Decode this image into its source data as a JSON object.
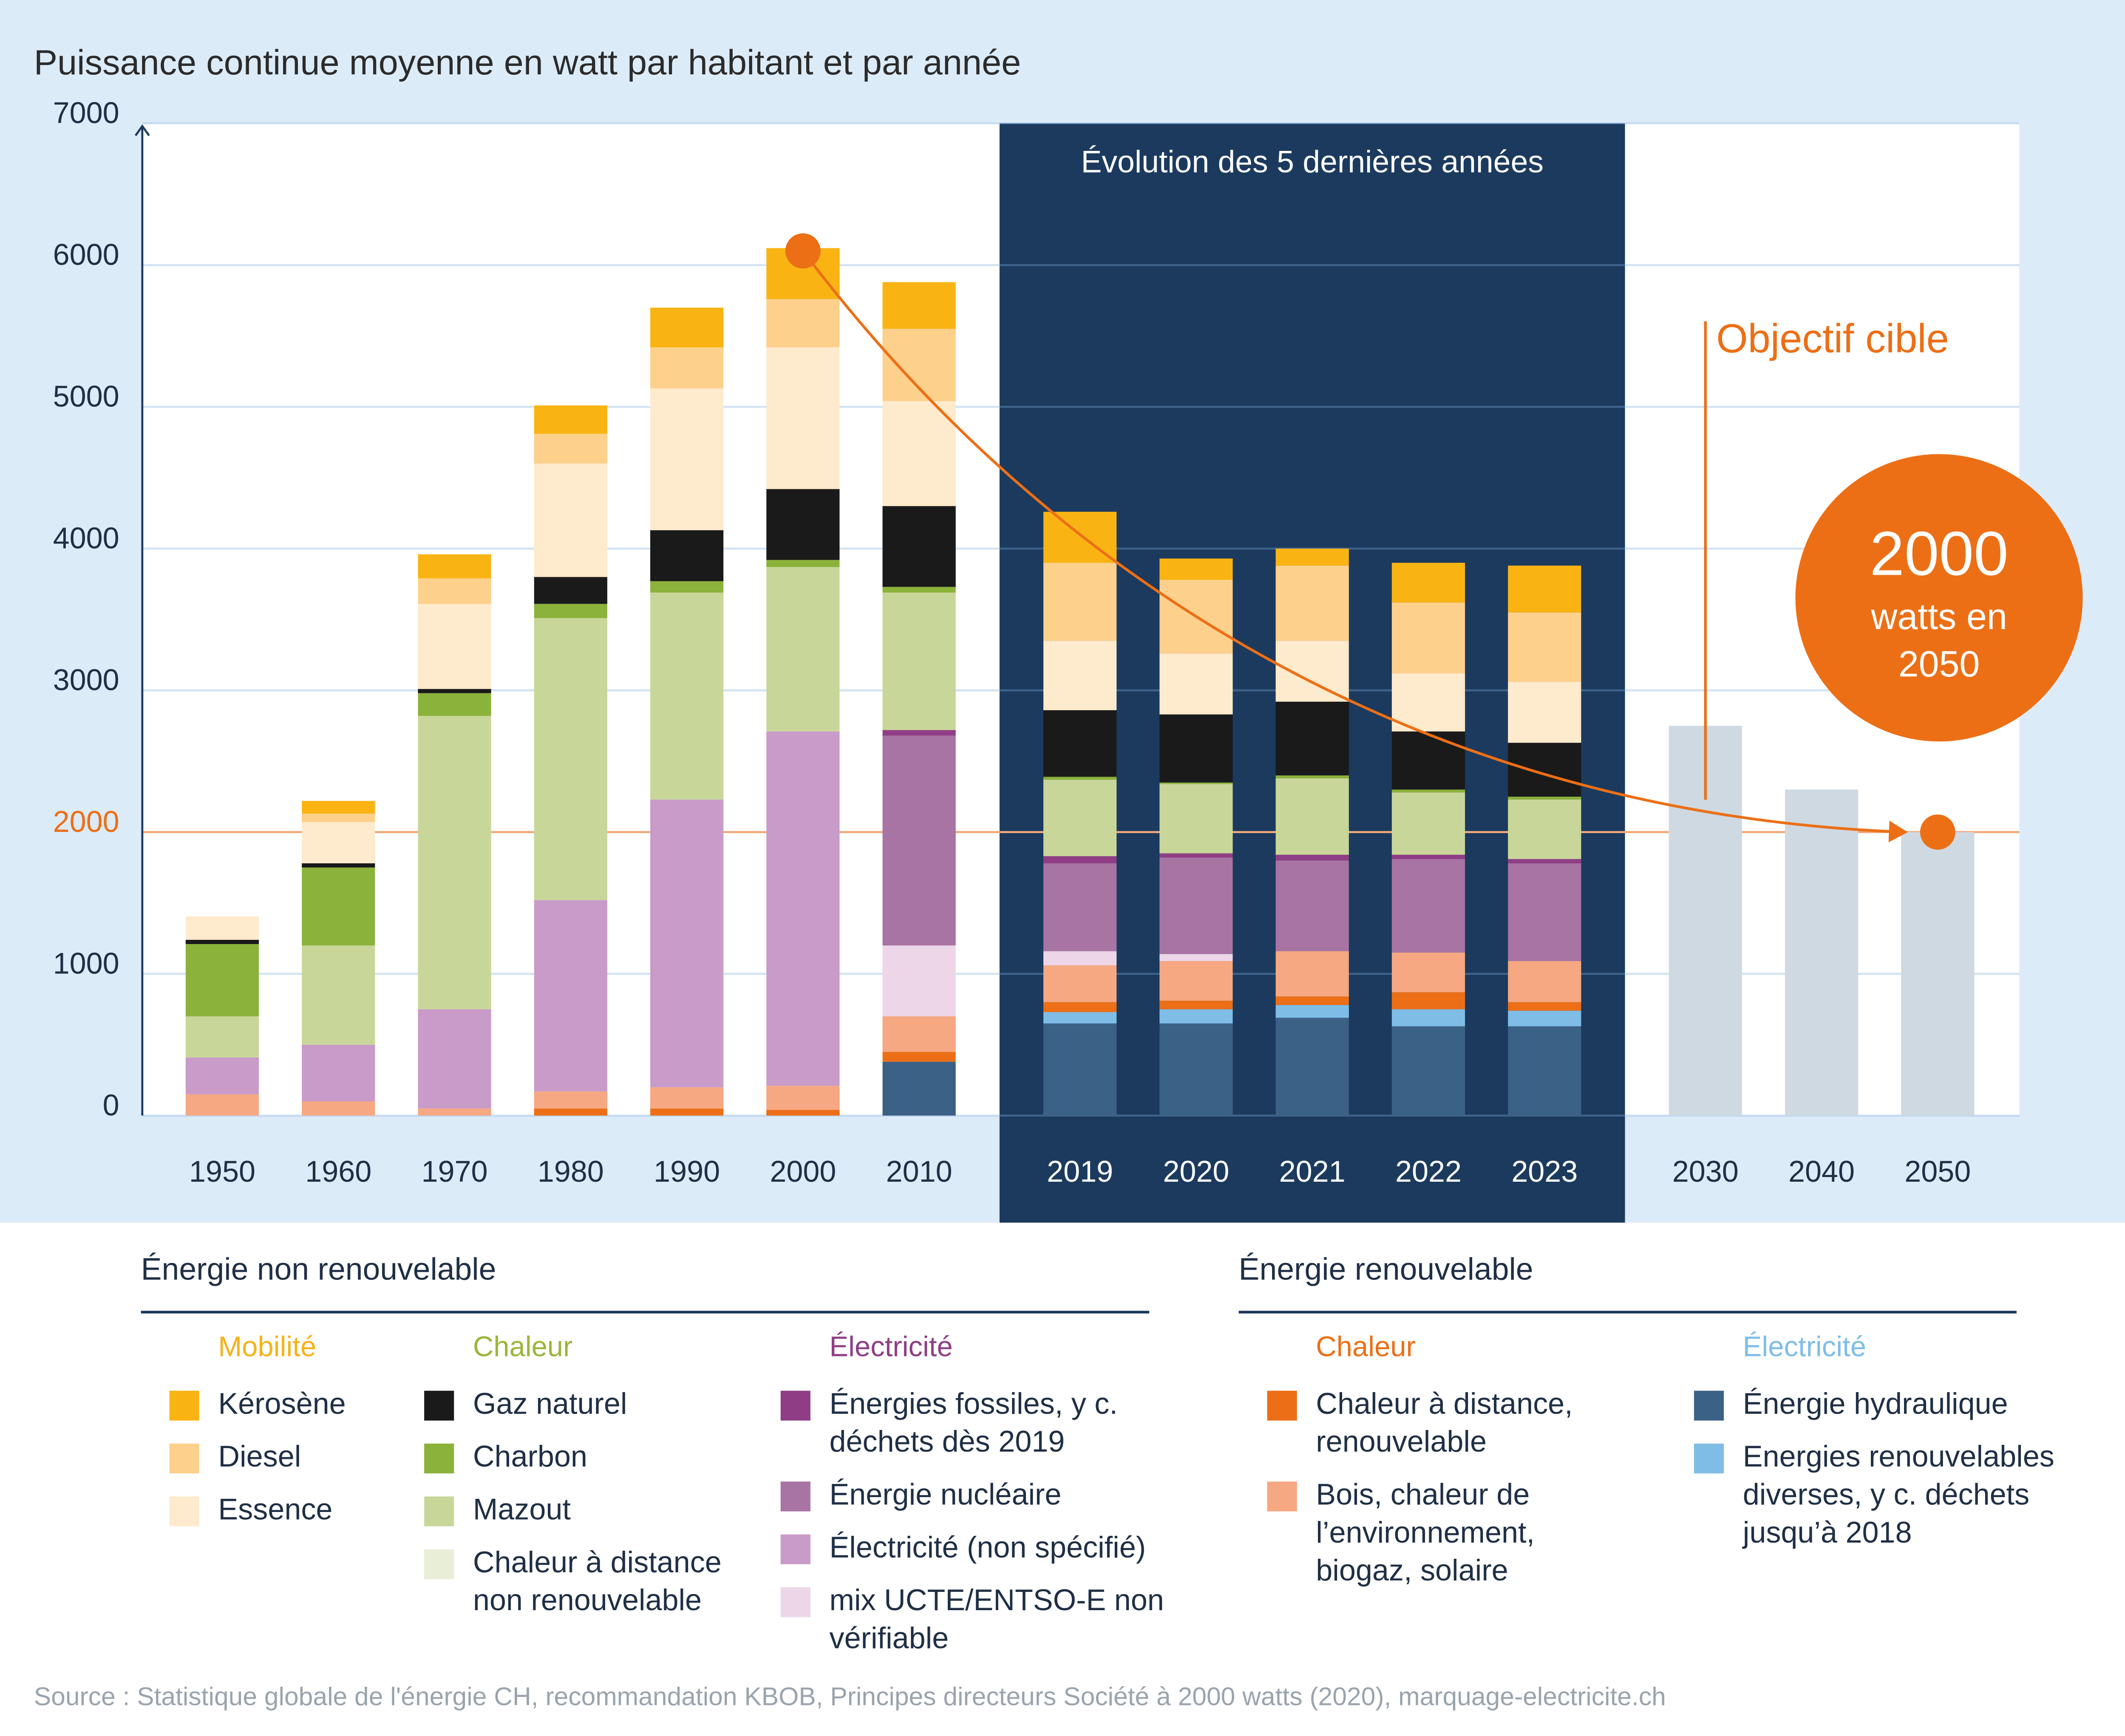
{
  "chart_data": {
    "type": "stacked_bar",
    "title": "Puissance continue moyenne en watt par habitant et par année",
    "categories": [
      "1950",
      "1960",
      "1970",
      "1980",
      "1990",
      "2000",
      "2010",
      "2019",
      "2020",
      "2021",
      "2022",
      "2023",
      "2030",
      "2040",
      "2050"
    ],
    "ylim": [
      0,
      7000
    ],
    "yticks": [
      0,
      1000,
      2000,
      3000,
      4000,
      5000,
      6000,
      7000
    ],
    "grid": true,
    "reference_line": 2000,
    "highlight": {
      "label": "Évolution des 5 dernières années",
      "categories": [
        "2019",
        "2023"
      ]
    },
    "series": [
      {
        "name": "Énergie hydraulique",
        "color": "#3c6186",
        "values": [
          0,
          0,
          0,
          0,
          0,
          0,
          380,
          650,
          650,
          690,
          630,
          630,
          null,
          null,
          null
        ]
      },
      {
        "name": "Energies renouvelables diverses, y c. déchets jusqu’à 2018",
        "color": "#7fbde7",
        "values": [
          0,
          0,
          0,
          0,
          0,
          0,
          0,
          80,
          100,
          90,
          120,
          110,
          null,
          null,
          null
        ]
      },
      {
        "name": "Chaleur à distance, renouvelable",
        "color": "#ec6f17",
        "values": [
          0,
          0,
          0,
          50,
          50,
          40,
          70,
          70,
          60,
          60,
          120,
          60,
          null,
          null,
          null
        ]
      },
      {
        "name": "Bois, chaleur de l’environnement, biogaz, solaire",
        "color": "#f5a882",
        "values": [
          150,
          100,
          50,
          120,
          150,
          170,
          250,
          260,
          280,
          320,
          280,
          290,
          null,
          null,
          null
        ]
      },
      {
        "name": "mix UCTE/ENTSO-E non vérifiable",
        "color": "#ecd6e8",
        "values": [
          0,
          0,
          0,
          0,
          0,
          0,
          500,
          100,
          50,
          0,
          0,
          0,
          null,
          null,
          null
        ]
      },
      {
        "name": "Énergie nucléaire",
        "color": "#a874a3",
        "values": [
          0,
          0,
          0,
          0,
          0,
          0,
          1480,
          620,
          680,
          640,
          660,
          690,
          null,
          null,
          null
        ]
      },
      {
        "name": "Électricité (non spécifié)",
        "color": "#c99bc8",
        "values": [
          260,
          400,
          700,
          1350,
          2030,
          2500,
          0,
          0,
          0,
          0,
          0,
          0,
          null,
          null,
          null
        ]
      },
      {
        "name": "Énergies fossiles, y c. déchets dès 2019",
        "color": "#8f3e85",
        "values": [
          0,
          0,
          0,
          0,
          0,
          0,
          40,
          50,
          30,
          40,
          30,
          30,
          null,
          null,
          null
        ]
      },
      {
        "name": "Chaleur à distance non renouvelable",
        "color": "#e9eed6",
        "values": [
          0,
          0,
          0,
          0,
          0,
          0,
          0,
          0,
          0,
          0,
          0,
          0,
          null,
          null,
          null
        ]
      },
      {
        "name": "Mazout",
        "color": "#c9d69a",
        "values": [
          290,
          700,
          2070,
          1990,
          1460,
          1160,
          970,
          540,
          490,
          540,
          440,
          420,
          null,
          null,
          null
        ]
      },
      {
        "name": "Charbon",
        "color": "#8bb23a",
        "values": [
          510,
          550,
          160,
          100,
          80,
          50,
          40,
          20,
          10,
          20,
          20,
          20,
          null,
          null,
          null
        ]
      },
      {
        "name": "Gaz naturel",
        "color": "#1a1a1a",
        "values": [
          30,
          30,
          30,
          190,
          360,
          500,
          570,
          470,
          480,
          520,
          410,
          380,
          null,
          null,
          null
        ]
      },
      {
        "name": "Essence",
        "color": "#feeacc",
        "values": [
          165,
          290,
          600,
          800,
          1000,
          1000,
          740,
          490,
          430,
          430,
          410,
          430,
          null,
          null,
          null
        ]
      },
      {
        "name": "Diesel",
        "color": "#fdd08c",
        "values": [
          0,
          60,
          180,
          210,
          290,
          340,
          510,
          550,
          520,
          530,
          500,
          490,
          null,
          null,
          null
        ]
      },
      {
        "name": "Kérosène",
        "color": "#f9b414",
        "values": [
          0,
          90,
          170,
          200,
          280,
          360,
          330,
          360,
          150,
          120,
          280,
          330,
          null,
          null,
          null
        ]
      }
    ],
    "target_values": [
      null,
      null,
      null,
      null,
      null,
      null,
      null,
      null,
      null,
      null,
      null,
      null,
      2750,
      2300,
      2000
    ],
    "target_color": "#cfd9e2",
    "trend_x": [
      "2000",
      "2050"
    ],
    "trend_values": [
      6100,
      2000
    ],
    "trend_color": "#ec6f16",
    "annotation": "Objectif cible",
    "badge": [
      "2000",
      "watts en",
      "2050"
    ],
    "legend_groups": [
      {
        "title": "Énergie non renouvelable",
        "subgroups": [
          {
            "title": "Mobilité",
            "color": "#f5b31a",
            "members": [
              "Kérosène",
              "Diesel",
              "Essence"
            ]
          },
          {
            "title": "Chaleur",
            "color": "#9bb53a",
            "members": [
              "Gaz naturel",
              "Charbon",
              "Mazout",
              "Chaleur à distance non renouvelable"
            ]
          },
          {
            "title": "Électricité",
            "color": "#8f3e85",
            "members": [
              "Énergies fossiles, y c. déchets dès 2019",
              "Énergie nucléaire",
              "Électricité (non spécifié)",
              "mix UCTE/ENTSO-E non vérifiable"
            ]
          }
        ]
      },
      {
        "title": "Énergie renouvelable",
        "subgroups": [
          {
            "title": "Chaleur",
            "color": "#ec6f17",
            "members": [
              "Chaleur à distance, renouvelable",
              "Bois, chaleur de l’environnement, biogaz, solaire"
            ]
          },
          {
            "title": "Électricité",
            "color": "#7fbde7",
            "members": [
              "Énergie hydraulique",
              "Energies renouvelables diverses, y c. déchets jusqu’à 2018"
            ]
          }
        ]
      }
    ],
    "source": "Source : Statistique globale de l'énergie CH, recommandation KBOB, Principes directeurs Société à 2000 watts (2020), marquage-electricite.ch"
  }
}
